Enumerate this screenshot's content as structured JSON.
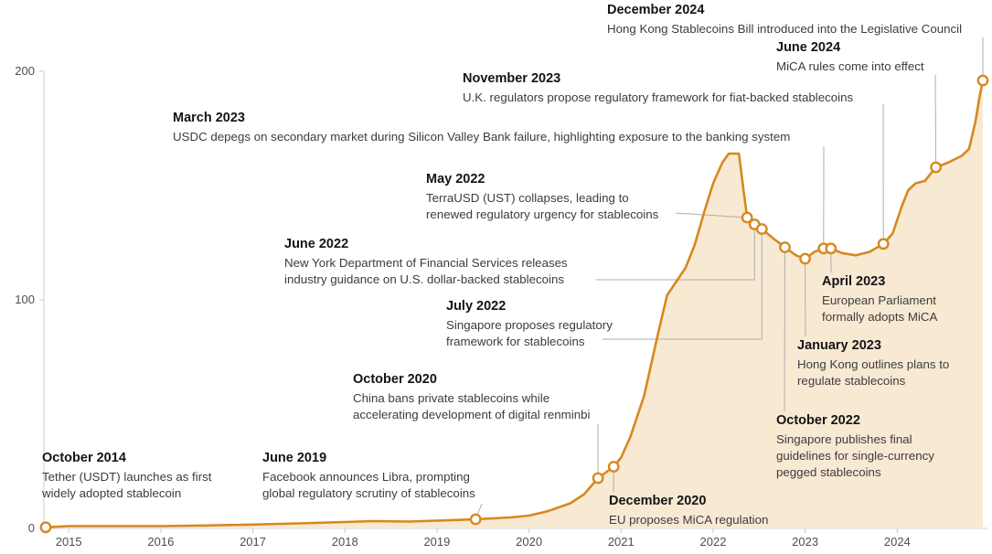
{
  "chart_data": {
    "type": "area",
    "title": "",
    "xlabel": "",
    "ylabel": "",
    "x_range": [
      2014.73,
      2024.98
    ],
    "y_range": [
      0,
      200
    ],
    "x_ticks": [
      "2015",
      "2016",
      "2017",
      "2018",
      "2019",
      "2020",
      "2021",
      "2022",
      "2023",
      "2024"
    ],
    "x_tick_years": [
      2015,
      2016,
      2017,
      2018,
      2019,
      2020,
      2021,
      2022,
      2023,
      2024
    ],
    "y_ticks": [
      0,
      100,
      200
    ],
    "grid": false,
    "legend": false,
    "colors": {
      "line": "#d6881e",
      "fill": "#f8e9d3",
      "marker_fill": "#ffffff",
      "connector": "#aeaeae",
      "axis": "#cccccc",
      "tick_text": "#4e4e4e"
    },
    "series": [
      {
        "name": "stablecoin-market-value",
        "x": [
          2014.75,
          2015.0,
          2015.5,
          2016.0,
          2016.5,
          2017.0,
          2017.5,
          2018.0,
          2018.3,
          2018.7,
          2019.0,
          2019.42,
          2019.8,
          2020.0,
          2020.2,
          2020.45,
          2020.6,
          2020.75,
          2020.92,
          2021.0,
          2021.1,
          2021.25,
          2021.4,
          2021.5,
          2021.6,
          2021.7,
          2021.8,
          2021.9,
          2022.0,
          2022.1,
          2022.17,
          2022.28,
          2022.33,
          2022.37,
          2022.45,
          2022.53,
          2022.65,
          2022.78,
          2022.9,
          2023.0,
          2023.1,
          2023.2,
          2023.28,
          2023.4,
          2023.55,
          2023.7,
          2023.85,
          2023.95,
          2024.05,
          2024.12,
          2024.2,
          2024.3,
          2024.42,
          2024.55,
          2024.7,
          2024.78,
          2024.85,
          2024.9,
          2024.93
        ],
        "y": [
          0.5,
          1,
          1,
          1,
          1.3,
          1.7,
          2.2,
          2.8,
          3.2,
          3,
          3.4,
          4,
          4.8,
          5.6,
          7.5,
          11,
          15,
          22,
          27,
          31,
          40,
          58,
          85,
          102,
          108,
          114,
          124,
          138,
          151,
          160,
          164,
          164,
          148,
          136,
          133,
          131,
          127,
          123,
          119.5,
          118,
          121,
          122.5,
          122.5,
          120.5,
          119.5,
          121,
          124.5,
          129,
          141,
          148,
          151,
          152,
          158,
          160,
          163,
          166,
          178,
          190,
          196
        ]
      }
    ],
    "events": [
      {
        "id": "oct-2014",
        "date": "October 2014",
        "lines": [
          "Tether (USDT) launches as first",
          "widely adopted stablecoin"
        ],
        "x": 2014.75,
        "y": 0.5
      },
      {
        "id": "june-2019",
        "date": "June 2019",
        "lines": [
          "Facebook announces Libra, prompting",
          "global regulatory scrutiny of stablecoins"
        ],
        "x": 2019.42,
        "y": 4
      },
      {
        "id": "oct-2020",
        "date": "October 2020",
        "lines": [
          "China bans private stablecoins while",
          "accelerating development of digital renminbi"
        ],
        "x": 2020.75,
        "y": 22
      },
      {
        "id": "dec-2020",
        "date": "December 2020",
        "lines": [
          "EU proposes MiCA regulation"
        ],
        "x": 2020.92,
        "y": 27
      },
      {
        "id": "may-2022",
        "date": "May 2022",
        "lines": [
          "TerraUSD (UST) collapses, leading to",
          "renewed regulatory urgency for stablecoins"
        ],
        "x": 2022.37,
        "y": 136
      },
      {
        "id": "june-2022",
        "date": "June 2022",
        "lines": [
          "New York Department of Financial Services releases",
          "industry guidance on U.S. dollar-backed stablecoins"
        ],
        "x": 2022.45,
        "y": 133
      },
      {
        "id": "july-2022",
        "date": "July 2022",
        "lines": [
          "Singapore proposes regulatory",
          "framework for stablecoins"
        ],
        "x": 2022.53,
        "y": 131
      },
      {
        "id": "oct-2022",
        "date": "October 2022",
        "lines": [
          "Singapore publishes final",
          "guidelines for single-currency",
          "pegged stablecoins"
        ],
        "x": 2022.78,
        "y": 123
      },
      {
        "id": "jan-2023",
        "date": "January 2023",
        "lines": [
          "Hong Kong outlines plans to",
          "regulate stablecoins"
        ],
        "x": 2023.0,
        "y": 118
      },
      {
        "id": "march-2023",
        "date": "March 2023",
        "lines": [
          "USDC depegs on secondary market during Silicon Valley Bank failure, highlighting exposure to the banking system"
        ],
        "x": 2023.2,
        "y": 122.5
      },
      {
        "id": "april-2023",
        "date": "April 2023",
        "lines": [
          "European Parliament",
          "formally adopts MiCA"
        ],
        "x": 2023.28,
        "y": 122.5
      },
      {
        "id": "nov-2023",
        "date": "November 2023",
        "lines": [
          "U.K. regulators propose regulatory framework for fiat-backed stablecoins"
        ],
        "x": 2023.85,
        "y": 124.5
      },
      {
        "id": "june-2024",
        "date": "June 2024",
        "lines": [
          "MiCA rules come into effect"
        ],
        "x": 2024.42,
        "y": 158
      },
      {
        "id": "dec-2024",
        "date": "December 2024",
        "lines": [
          "Hong Kong Stablecoins Bill introduced into the Legislative Council"
        ],
        "x": 2024.93,
        "y": 196
      }
    ]
  }
}
